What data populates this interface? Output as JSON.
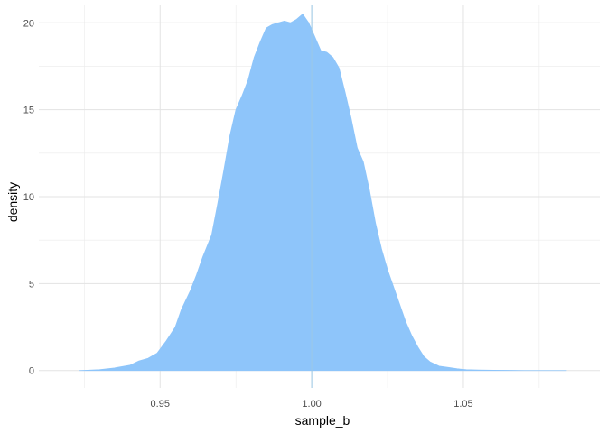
{
  "chart_data": {
    "type": "area",
    "xlabel": "sample_b",
    "ylabel": "density",
    "xlim": [
      0.91,
      1.095
    ],
    "ylim": [
      -1.0,
      21.0
    ],
    "x_ticks": [
      {
        "value": 0.95,
        "label": "0.95"
      },
      {
        "value": 1.0,
        "label": "1.00"
      },
      {
        "value": 1.05,
        "label": "1.05"
      }
    ],
    "y_ticks": [
      {
        "value": 0,
        "label": "0"
      },
      {
        "value": 5,
        "label": "5"
      },
      {
        "value": 10,
        "label": "10"
      },
      {
        "value": 15,
        "label": "15"
      },
      {
        "value": 20,
        "label": "20"
      }
    ],
    "reference_line_x": 1.0,
    "grid": true,
    "fill_color": "#8EC5FA",
    "reference_line_color": "#9CC9E6",
    "series": [
      {
        "x": [
          0.9235,
          0.93,
          0.935,
          0.94,
          0.943,
          0.946,
          0.949,
          0.952,
          0.955,
          0.957,
          0.96,
          0.962,
          0.964,
          0.967,
          0.969,
          0.971,
          0.973,
          0.975,
          0.977,
          0.979,
          0.981,
          0.983,
          0.985,
          0.987,
          0.989,
          0.991,
          0.993,
          0.995,
          0.997,
          0.999,
          1.001,
          1.003,
          1.005,
          1.007,
          1.009,
          1.011,
          1.013,
          1.015,
          1.017,
          1.019,
          1.021,
          1.023,
          1.025,
          1.027,
          1.029,
          1.031,
          1.033,
          1.035,
          1.037,
          1.039,
          1.042,
          1.045,
          1.048,
          1.051,
          1.055,
          1.06,
          1.065,
          1.07,
          1.075,
          1.08,
          1.084
        ],
        "y": [
          0.0,
          0.05,
          0.15,
          0.3,
          0.55,
          0.7,
          1.0,
          1.7,
          2.5,
          3.5,
          4.6,
          5.5,
          6.5,
          7.8,
          9.6,
          11.5,
          13.5,
          15.0,
          15.8,
          16.7,
          18.0,
          18.9,
          19.7,
          19.9,
          20.0,
          20.1,
          20.0,
          20.2,
          20.5,
          20.0,
          19.2,
          18.4,
          18.3,
          18.0,
          17.4,
          16.0,
          14.5,
          12.8,
          12.0,
          10.4,
          8.5,
          7.0,
          5.8,
          4.8,
          3.8,
          2.8,
          2.0,
          1.35,
          0.8,
          0.5,
          0.25,
          0.18,
          0.1,
          0.05,
          0.03,
          0.02,
          0.01,
          0.0,
          0.0,
          0.0,
          0.0
        ]
      }
    ]
  }
}
